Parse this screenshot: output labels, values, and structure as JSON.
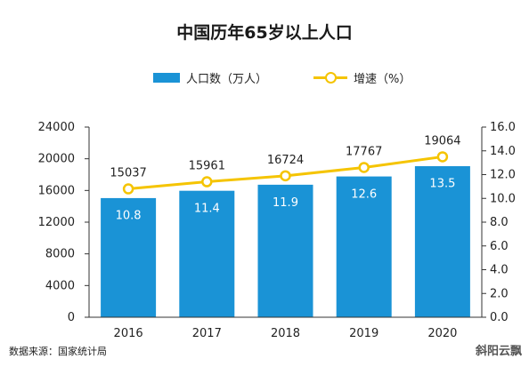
{
  "chart_data": {
    "type": "bar",
    "title": "中国历年65岁以上人口",
    "categories": [
      "2016",
      "2017",
      "2018",
      "2019",
      "2020"
    ],
    "series": [
      {
        "name": "人口数（万人）",
        "type": "bar",
        "axis": "left",
        "values": [
          15037,
          15961,
          16724,
          17767,
          19064
        ]
      },
      {
        "name": "增速（%）",
        "type": "line",
        "axis": "right",
        "values": [
          10.8,
          11.4,
          11.9,
          12.6,
          13.5
        ]
      }
    ],
    "y_left": {
      "min": 0,
      "max": 24000,
      "ticks": [
        "0",
        "4000",
        "8000",
        "12000",
        "16000",
        "20000",
        "24000"
      ]
    },
    "y_right": {
      "min": 0,
      "max": 16,
      "ticks": [
        "0.0",
        "2.0",
        "4.0",
        "6.0",
        "8.0",
        "10.0",
        "12.0",
        "14.0",
        "16.0"
      ]
    },
    "legend_position": "top",
    "grid": false,
    "colors": {
      "bar": "#1a93d6",
      "line": "#f5c400"
    }
  },
  "source": "数据来源：国家统计局",
  "watermark": "斜阳云飘"
}
